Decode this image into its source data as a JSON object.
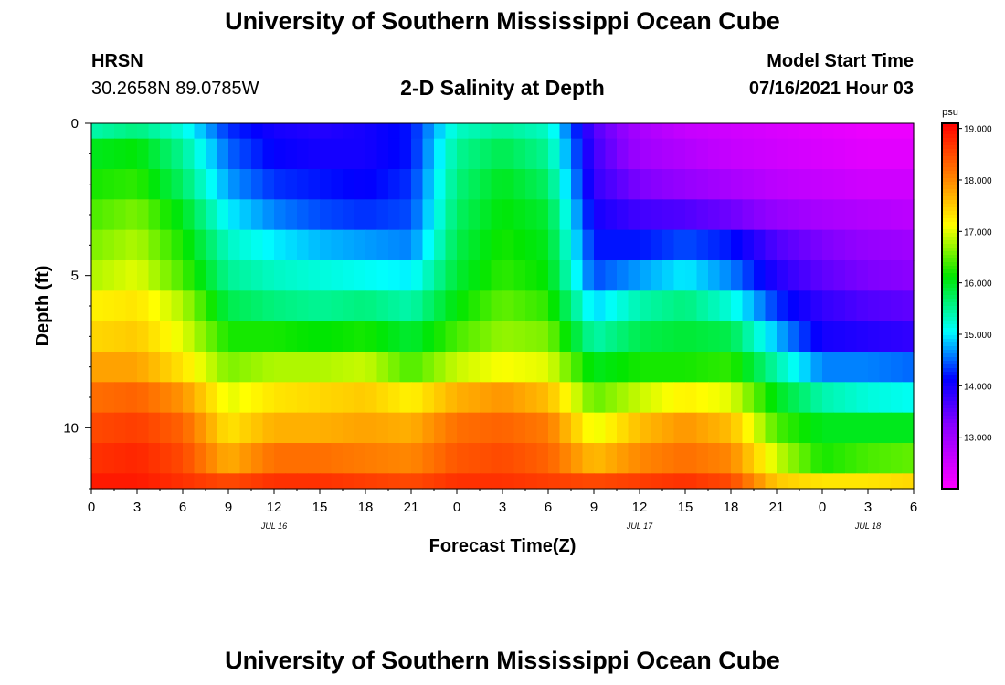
{
  "header": {
    "title": "University of Southern Mississippi Ocean Cube",
    "footer_title": "University of Southern Mississippi Ocean Cube",
    "station": "HRSN",
    "coords": "30.2658N  89.0785W",
    "chart_title": "2-D Salinity at Depth",
    "model_label": "Model Start Time",
    "model_time": "07/16/2021 Hour 03"
  },
  "chart_data": {
    "type": "heatmap",
    "title": "2-D Salinity at Depth",
    "xlabel": "Forecast Time(Z)",
    "ylabel": "Depth (ft)",
    "x_ticks": [
      "0",
      "3",
      "6",
      "9",
      "12",
      "15",
      "18",
      "21",
      "0",
      "3",
      "6",
      "9",
      "12",
      "15",
      "18",
      "21",
      "0",
      "3",
      "6"
    ],
    "date_labels": [
      {
        "label": "JUL 16",
        "hour": 12
      },
      {
        "label": "JUL 17",
        "hour": 36
      },
      {
        "label": "JUL 18",
        "hour": 51
      }
    ],
    "x_range_hours": [
      0,
      54
    ],
    "y_ticks": [
      "0",
      "5",
      "10"
    ],
    "y_range_ft": [
      0,
      12
    ],
    "colorbar": {
      "unit": "psu",
      "ticks": [
        "19.000",
        "18.000",
        "17.000",
        "16.000",
        "15.000",
        "14.000",
        "13.000"
      ],
      "range": [
        12.0,
        19.1
      ]
    },
    "depth_layers_ft": [
      0,
      1,
      2,
      3,
      4,
      5,
      6,
      7,
      8,
      9,
      10,
      11,
      12
    ],
    "time_hours": [
      0,
      3,
      6,
      9,
      12,
      15,
      18,
      21,
      24,
      27,
      30,
      33,
      36,
      39,
      42,
      45,
      48,
      51,
      54
    ],
    "salinity_psu": [
      [
        15.4,
        15.6,
        15.2,
        14.3,
        14.0,
        13.9,
        14.0,
        14.2,
        15.3,
        15.5,
        15.3,
        13.6,
        12.9,
        12.6,
        12.5,
        12.4,
        12.3,
        12.2,
        12.2
      ],
      [
        16.0,
        16.1,
        15.5,
        14.5,
        14.1,
        14.0,
        14.0,
        14.2,
        15.5,
        15.8,
        15.5,
        13.7,
        13.0,
        12.8,
        12.6,
        12.5,
        12.4,
        12.3,
        12.3
      ],
      [
        16.2,
        16.3,
        15.7,
        14.7,
        14.3,
        14.2,
        14.1,
        14.3,
        15.6,
        16.0,
        15.7,
        13.8,
        13.3,
        13.1,
        12.9,
        12.7,
        12.6,
        12.5,
        12.5
      ],
      [
        16.4,
        16.6,
        16.0,
        15.0,
        14.6,
        14.4,
        14.3,
        14.4,
        15.7,
        16.1,
        15.9,
        14.0,
        13.7,
        13.6,
        13.4,
        13.1,
        12.9,
        12.8,
        12.7
      ],
      [
        16.6,
        16.8,
        16.2,
        15.3,
        15.0,
        14.8,
        14.7,
        14.6,
        15.8,
        16.2,
        16.0,
        14.2,
        14.2,
        14.4,
        14.2,
        13.6,
        13.3,
        13.1,
        13.0
      ],
      [
        16.8,
        17.0,
        16.4,
        15.5,
        15.3,
        15.2,
        15.1,
        15.0,
        15.9,
        16.3,
        16.1,
        14.4,
        14.7,
        15.0,
        14.6,
        13.9,
        13.5,
        13.3,
        13.2
      ],
      [
        17.2,
        17.3,
        16.8,
        15.8,
        15.6,
        15.5,
        15.6,
        15.4,
        16.1,
        16.5,
        16.3,
        14.9,
        15.4,
        15.6,
        15.2,
        14.3,
        13.8,
        13.6,
        13.5
      ],
      [
        17.4,
        17.5,
        17.0,
        16.2,
        16.2,
        16.1,
        16.2,
        15.9,
        16.4,
        16.7,
        16.6,
        15.4,
        15.8,
        15.9,
        15.8,
        14.8,
        14.0,
        13.9,
        13.8
      ],
      [
        17.8,
        17.8,
        17.3,
        16.6,
        16.8,
        16.8,
        16.9,
        16.4,
        16.9,
        17.1,
        17.0,
        16.0,
        16.2,
        16.2,
        16.3,
        15.4,
        14.6,
        14.6,
        14.5
      ],
      [
        18.2,
        18.3,
        17.9,
        17.0,
        17.3,
        17.4,
        17.5,
        17.2,
        17.7,
        17.9,
        17.6,
        16.5,
        16.9,
        17.2,
        17.0,
        16.0,
        15.4,
        15.2,
        15.1
      ],
      [
        18.5,
        18.6,
        18.3,
        17.3,
        17.7,
        17.7,
        17.8,
        17.7,
        18.2,
        18.3,
        18.1,
        17.0,
        17.6,
        17.9,
        17.6,
        16.4,
        16.0,
        16.0,
        16.0
      ],
      [
        18.7,
        18.8,
        18.5,
        17.7,
        18.2,
        18.2,
        18.1,
        18.0,
        18.4,
        18.5,
        18.3,
        17.6,
        18.0,
        18.2,
        18.0,
        16.9,
        16.2,
        16.4,
        16.5
      ],
      [
        18.9,
        18.9,
        18.7,
        18.5,
        18.7,
        18.7,
        18.6,
        18.5,
        18.7,
        18.7,
        18.6,
        18.5,
        18.6,
        18.7,
        18.5,
        17.5,
        17.3,
        17.3,
        17.4
      ]
    ]
  }
}
